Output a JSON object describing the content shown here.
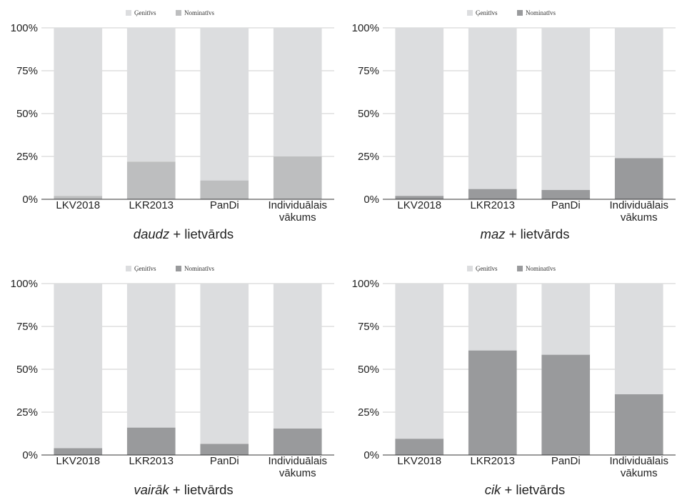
{
  "chart_data": [
    {
      "type": "bar",
      "stacked": "percent",
      "title": "",
      "caption": {
        "italic": "daudz",
        "rest": " + lietvārds"
      },
      "categories": [
        [
          "LKV2018"
        ],
        [
          "LKR2013"
        ],
        [
          "PanDi"
        ],
        [
          "Individuālais",
          "vākums"
        ]
      ],
      "series": [
        {
          "name": "Ģenitīvs",
          "color": "#dcdddf",
          "values": [
            98,
            78,
            89,
            75
          ]
        },
        {
          "name": "Nominatīvs",
          "color": "#bdbebf",
          "values": [
            2,
            22,
            11,
            25
          ]
        }
      ],
      "ylim": [
        0,
        100
      ],
      "yticks": [
        "0%",
        "25%",
        "50%",
        "75%",
        "100%"
      ],
      "legend": "top",
      "grid": true
    },
    {
      "type": "bar",
      "stacked": "percent",
      "title": "",
      "caption": {
        "italic": "maz",
        "rest": " + lietvārds"
      },
      "categories": [
        [
          "LKV2018"
        ],
        [
          "LKR2013"
        ],
        [
          "PanDi"
        ],
        [
          "Individuālais",
          "vākums"
        ]
      ],
      "series": [
        {
          "name": "Ģenitīvs",
          "color": "#dcdddf",
          "values": [
            98,
            94,
            94.5,
            76
          ]
        },
        {
          "name": "Nominatīvs",
          "color": "#999a9c",
          "values": [
            2,
            6,
            5.5,
            24
          ]
        }
      ],
      "ylim": [
        0,
        100
      ],
      "yticks": [
        "0%",
        "25%",
        "50%",
        "75%",
        "100%"
      ],
      "legend": "top",
      "grid": true
    },
    {
      "type": "bar",
      "stacked": "percent",
      "title": "",
      "caption": {
        "italic": "vairāk",
        "rest": " + lietvārds"
      },
      "categories": [
        [
          "LKV2018"
        ],
        [
          "LKR2013"
        ],
        [
          "PanDi"
        ],
        [
          "Individuālais",
          "vākums"
        ]
      ],
      "series": [
        {
          "name": "Ģenitīvs",
          "color": "#dcdddf",
          "values": [
            96,
            84,
            93.5,
            84.5
          ]
        },
        {
          "name": "Nominatīvs",
          "color": "#999a9c",
          "values": [
            4,
            16,
            6.5,
            15.5
          ]
        }
      ],
      "ylim": [
        0,
        100
      ],
      "yticks": [
        "0%",
        "25%",
        "50%",
        "75%",
        "100%"
      ],
      "legend": "top",
      "grid": true
    },
    {
      "type": "bar",
      "stacked": "percent",
      "title": "",
      "caption": {
        "italic": "cik",
        "rest": " + lietvārds"
      },
      "categories": [
        [
          "LKV2018"
        ],
        [
          "LKR2013"
        ],
        [
          "PanDi"
        ],
        [
          "Individuālais",
          "vākums"
        ]
      ],
      "series": [
        {
          "name": "Ģenitīvs",
          "color": "#dcdddf",
          "values": [
            90.5,
            39,
            41.5,
            64.5
          ]
        },
        {
          "name": "Nominatīvs",
          "color": "#999a9c",
          "values": [
            9.5,
            61,
            58.5,
            35.5
          ]
        }
      ],
      "ylim": [
        0,
        100
      ],
      "yticks": [
        "0%",
        "25%",
        "50%",
        "75%",
        "100%"
      ],
      "legend": "top",
      "grid": true
    }
  ]
}
